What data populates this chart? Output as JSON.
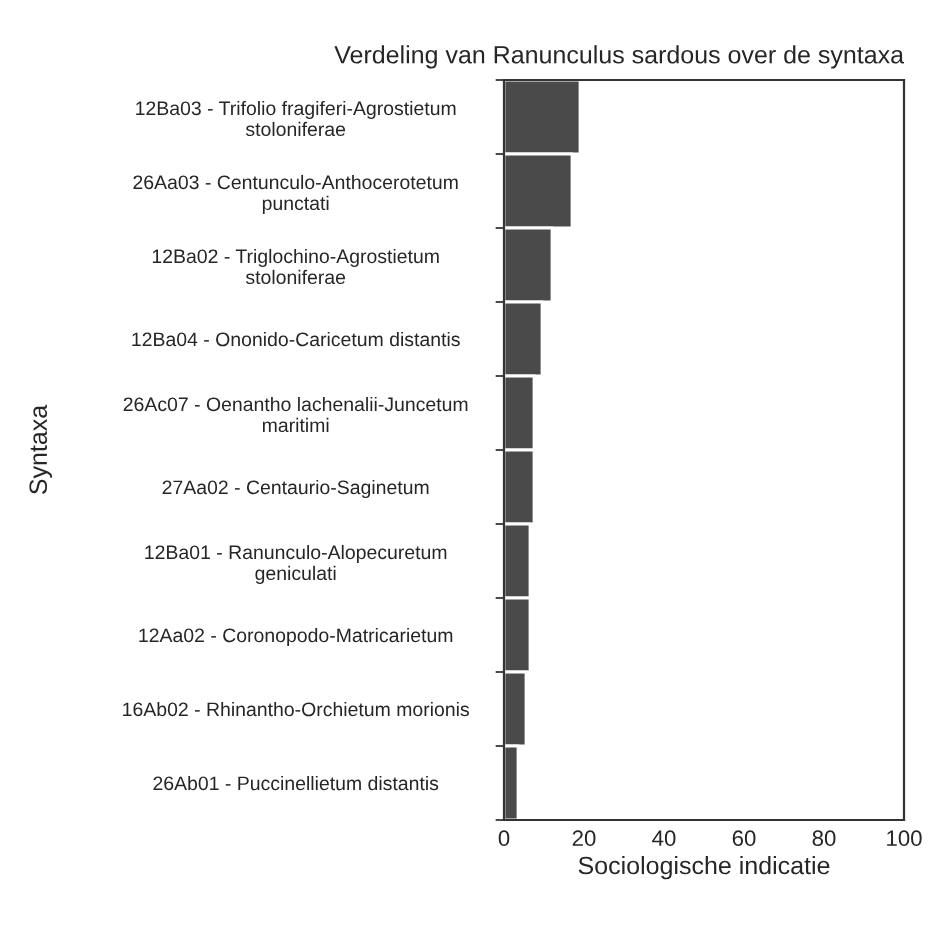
{
  "chart_data": {
    "type": "bar",
    "orientation": "horizontal",
    "title": "Verdeling van Ranunculus sardous over de syntaxa",
    "xlabel": "Sociologische indicatie",
    "ylabel": "Syntaxa",
    "categories": [
      "12Ba03 - Trifolio fragiferi-Agrostietum\nstoloniferae",
      "26Aa03 - Centunculo-Anthocerotetum\npunctati",
      "12Ba02 - Triglochino-Agrostietum\nstoloniferae",
      "12Ba04 - Ononido-Caricetum distantis",
      "26Ac07 - Oenantho lachenalii-Juncetum\nmaritimi",
      "27Aa02 - Centaurio-Saginetum",
      "12Ba01 - Ranunculo-Alopecuretum\ngeniculati",
      "12Aa02 - Coronopodo-Matricarietum",
      "16Ab02 - Rhinantho-Orchietum morionis",
      "26Ab01 - Puccinellietum distantis"
    ],
    "values": [
      19,
      17,
      12,
      9.5,
      7.5,
      7.5,
      6.5,
      6.5,
      5.5,
      3.5
    ],
    "color": "#4a4a4a",
    "xlim": [
      0,
      100
    ],
    "xticks": [
      0,
      20,
      40,
      60,
      80,
      100
    ],
    "grid": false
  }
}
